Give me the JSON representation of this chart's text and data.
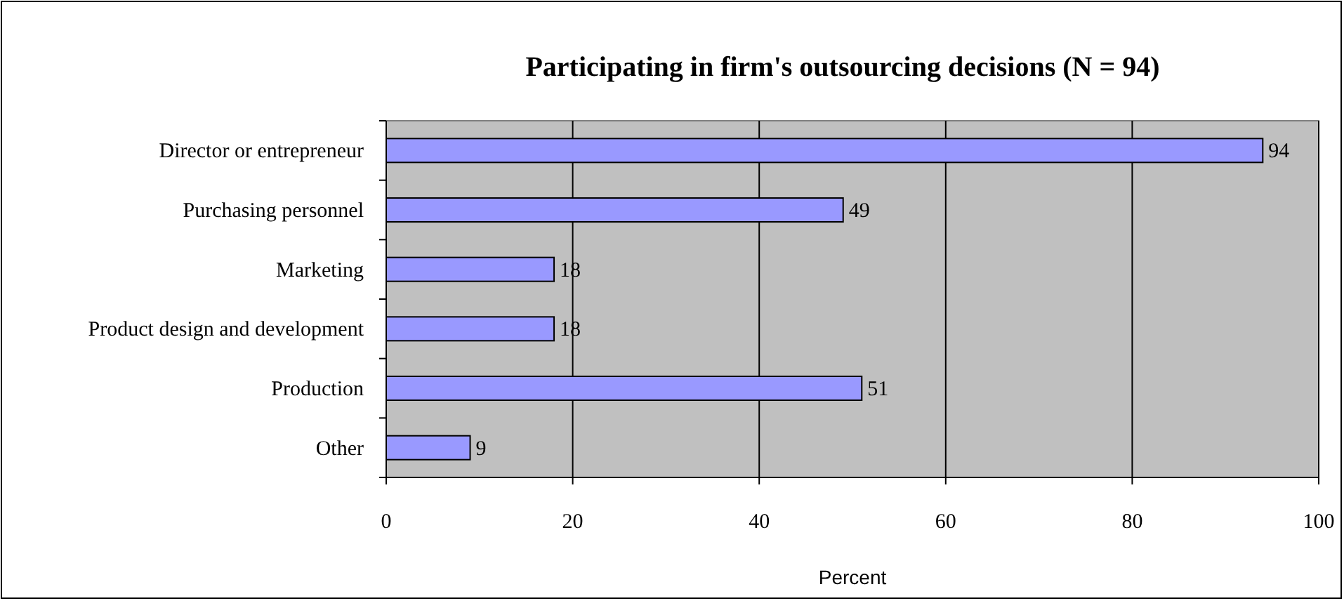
{
  "chart_data": {
    "type": "bar",
    "orientation": "horizontal",
    "title": "Participating in firm's outsourcing decisions (N = 94)",
    "categories": [
      "Director or entrepreneur",
      "Purchasing personnel",
      "Marketing",
      "Product design and development",
      "Production",
      "Other"
    ],
    "values": [
      94,
      49,
      18,
      18,
      51,
      9
    ],
    "color": "#9999ff",
    "xlim": [
      0,
      100
    ],
    "xticks": [
      0,
      20,
      40,
      60,
      80,
      100
    ],
    "xlabel": "Percent",
    "grid": "x",
    "data_labels": true
  }
}
